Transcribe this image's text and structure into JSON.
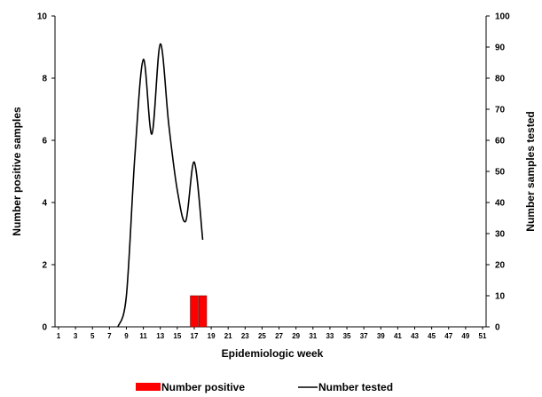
{
  "chart_data": {
    "type": "bar+line",
    "xlabel": "Epidemiologic week",
    "ylabel_left": "Number positive samples",
    "ylabel_right": "Number samples tested",
    "ylim_left": [
      0,
      10
    ],
    "ylim_right": [
      0,
      100
    ],
    "yticks_left": [
      "0",
      "2",
      "4",
      "6",
      "8",
      "10"
    ],
    "yticks_right": [
      "0",
      "10",
      "20",
      "30",
      "40",
      "50",
      "60",
      "70",
      "80",
      "90",
      "100"
    ],
    "x_range": [
      1,
      51
    ],
    "xtick_labels": [
      "1",
      "3",
      "5",
      "7",
      "9",
      "11",
      "13",
      "15",
      "17",
      "19",
      "21",
      "23",
      "25",
      "27",
      "29",
      "31",
      "33",
      "35",
      "37",
      "39",
      "41",
      "43",
      "45",
      "47",
      "49",
      "51"
    ],
    "grid": false,
    "legend_position": "bottom",
    "series": [
      {
        "name": "Number positive",
        "type": "bar",
        "axis": "left",
        "color": "#ff0000",
        "x": [
          17,
          18
        ],
        "values": [
          1,
          1
        ]
      },
      {
        "name": "Number tested",
        "type": "line",
        "axis": "right",
        "color": "#000000",
        "x": [
          8,
          9,
          10,
          11,
          12,
          13,
          14,
          15,
          16,
          17,
          18
        ],
        "values": [
          0,
          10,
          55,
          86,
          62,
          91,
          65,
          44,
          34,
          53,
          28
        ]
      }
    ]
  }
}
